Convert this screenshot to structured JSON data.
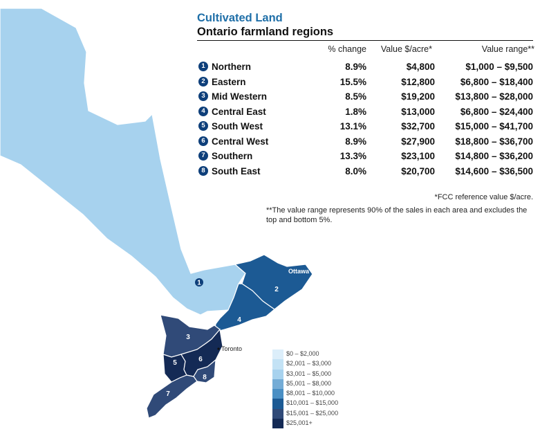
{
  "header": {
    "title": "Cultivated Land",
    "subtitle": "Ontario farmland regions"
  },
  "table": {
    "columns": [
      "% change",
      "Value $/acre*",
      "Value range**"
    ],
    "rows": [
      {
        "num": "1",
        "name": "Northern",
        "change": "8.9%",
        "value": "$4,800",
        "range": "$1,000 – $9,500"
      },
      {
        "num": "2",
        "name": "Eastern",
        "change": "15.5%",
        "value": "$12,800",
        "range": "$6,800 – $18,400"
      },
      {
        "num": "3",
        "name": "Mid Western",
        "change": "8.5%",
        "value": "$19,200",
        "range": "$13,800 – $28,000"
      },
      {
        "num": "4",
        "name": "Central East",
        "change": "1.8%",
        "value": "$13,000",
        "range": "$6,800 – $24,400"
      },
      {
        "num": "5",
        "name": "South West",
        "change": "13.1%",
        "value": "$32,700",
        "range": "$15,000 – $41,700"
      },
      {
        "num": "6",
        "name": "Central West",
        "change": "8.9%",
        "value": "$27,900",
        "range": "$18,800 – $36,700"
      },
      {
        "num": "7",
        "name": "Southern",
        "change": "13.3%",
        "value": "$23,100",
        "range": "$14,800 – $36,200"
      },
      {
        "num": "8",
        "name": "South East",
        "change": "8.0%",
        "value": "$20,700",
        "range": "$14,600 – $36,500"
      }
    ]
  },
  "notes": {
    "note1": "*FCC reference value $/acre.",
    "note2": "**The value range represents 90% of the sales in each area and excludes the top and bottom 5%."
  },
  "map": {
    "cities": [
      "Ottawa",
      "Toronto"
    ],
    "region_labels": [
      "1",
      "2",
      "3",
      "4",
      "5",
      "6",
      "7",
      "8"
    ],
    "region_colors": {
      "1": "#a7d2ee",
      "2": "#1c5a94",
      "3": "#304a78",
      "4": "#1c5a94",
      "5": "#142a55",
      "6": "#142a55",
      "7": "#304a78",
      "8": "#304a78"
    }
  },
  "legend": {
    "items": [
      {
        "label": "$0 – $2,000",
        "color": "#dceefa"
      },
      {
        "label": "$2,001 – $3,000",
        "color": "#c3e2f5"
      },
      {
        "label": "$3,001 – $5,000",
        "color": "#a7d2ee"
      },
      {
        "label": "$5,001 – $8,000",
        "color": "#74acd6"
      },
      {
        "label": "$8,001 – $10,000",
        "color": "#4a8fc4"
      },
      {
        "label": "$10,001 – $15,000",
        "color": "#1c5a94"
      },
      {
        "label": "$15,001 – $25,000",
        "color": "#304a78"
      },
      {
        "label": "$25,001+",
        "color": "#142a55"
      }
    ]
  }
}
